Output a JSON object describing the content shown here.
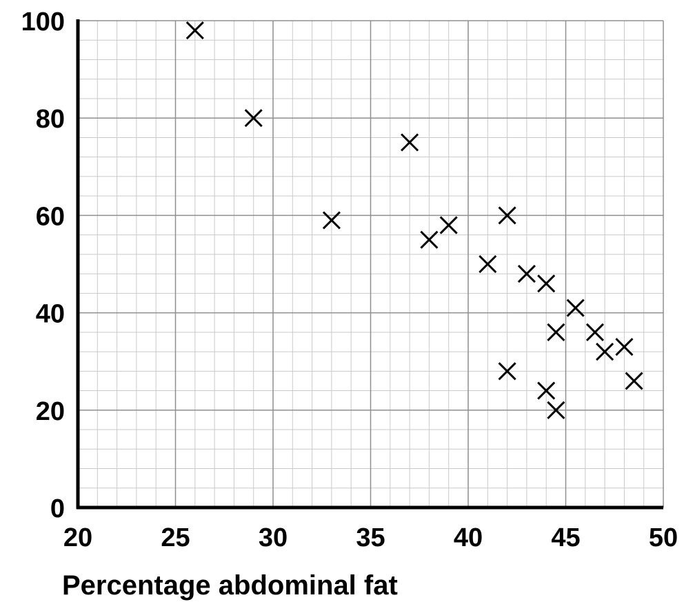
{
  "chart_data": {
    "type": "scatter",
    "title": "",
    "xlabel": "Percentage abdominal fat",
    "ylabel": "",
    "xlim": [
      20,
      50
    ],
    "ylim": [
      0,
      100
    ],
    "x_ticks": [
      20,
      25,
      30,
      35,
      40,
      45,
      50
    ],
    "y_ticks": [
      0,
      20,
      40,
      60,
      80,
      100
    ],
    "x_minor_step": 1,
    "y_minor_step": 4,
    "grid": true,
    "marker": "x",
    "points": [
      {
        "x": 26,
        "y": 98
      },
      {
        "x": 29,
        "y": 80
      },
      {
        "x": 33,
        "y": 59
      },
      {
        "x": 37,
        "y": 75
      },
      {
        "x": 38,
        "y": 55
      },
      {
        "x": 39,
        "y": 58
      },
      {
        "x": 41,
        "y": 50
      },
      {
        "x": 42,
        "y": 60
      },
      {
        "x": 42,
        "y": 28
      },
      {
        "x": 43,
        "y": 48
      },
      {
        "x": 44,
        "y": 46
      },
      {
        "x": 44,
        "y": 24
      },
      {
        "x": 44.5,
        "y": 36
      },
      {
        "x": 44.5,
        "y": 20
      },
      {
        "x": 45.5,
        "y": 41
      },
      {
        "x": 46.5,
        "y": 36
      },
      {
        "x": 47,
        "y": 32
      },
      {
        "x": 48,
        "y": 33
      },
      {
        "x": 48.5,
        "y": 26
      }
    ]
  }
}
